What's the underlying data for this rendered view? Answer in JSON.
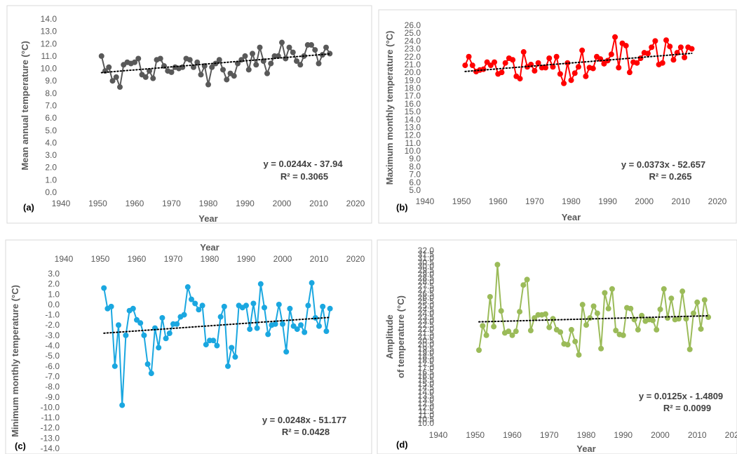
{
  "chart_data": [
    {
      "type": "line",
      "panel": "(a)",
      "xlabel": "Year",
      "ylabel": "Mean annual temperature (°C)",
      "xlim": [
        1940,
        2020
      ],
      "ylim": [
        0.0,
        14.0
      ],
      "xticks": [
        1940,
        1950,
        1960,
        1970,
        1980,
        1990,
        2000,
        2010,
        2020
      ],
      "ytick_step": 1.0,
      "ytick_decimals": 1,
      "x_axis_position": "bottom",
      "legend": "none",
      "equation": "y = 0.0244x - 37.94",
      "r2": "R² = 0.3065",
      "color": "#595959",
      "series": [
        {
          "x": [
            1951,
            1952,
            1953,
            1954,
            1955,
            1956,
            1957,
            1958,
            1959,
            1960,
            1961,
            1962,
            1963,
            1964,
            1965,
            1966,
            1967,
            1968,
            1969,
            1970,
            1971,
            1972,
            1973,
            1974,
            1975,
            1976,
            1977,
            1978,
            1979,
            1980,
            1981,
            1982,
            1983,
            1984,
            1985,
            1986,
            1987,
            1988,
            1989,
            1990,
            1991,
            1992,
            1993,
            1994,
            1995,
            1996,
            1997,
            1998,
            1999,
            2000,
            2001,
            2002,
            2003,
            2004,
            2005,
            2006,
            2007,
            2008,
            2009,
            2010,
            2011,
            2012,
            2013
          ],
          "values": [
            11.0,
            9.8,
            10.1,
            9.0,
            9.3,
            8.5,
            10.3,
            10.5,
            10.4,
            10.5,
            10.8,
            9.5,
            9.3,
            9.8,
            9.2,
            10.7,
            10.8,
            10.2,
            9.8,
            9.7,
            10.1,
            10.0,
            10.1,
            10.8,
            10.7,
            10.1,
            10.5,
            9.5,
            10.2,
            8.7,
            10.1,
            10.4,
            10.7,
            9.9,
            9.1,
            9.6,
            9.4,
            10.4,
            10.7,
            11.0,
            9.9,
            11.2,
            10.3,
            11.7,
            10.6,
            9.6,
            10.4,
            11.0,
            11.0,
            12.1,
            10.8,
            11.7,
            11.3,
            10.6,
            10.3,
            11.0,
            11.9,
            11.9,
            11.5,
            10.4,
            11.1,
            11.7,
            11.2
          ]
        }
      ],
      "trend": [
        1951,
        2013
      ]
    },
    {
      "type": "line",
      "panel": "(b)",
      "xlabel": "Year",
      "ylabel": "Maximum monthly temperature (°C)",
      "xlim": [
        1940,
        2020
      ],
      "ylim": [
        5.0,
        26.0
      ],
      "xticks": [
        1940,
        1950,
        1960,
        1970,
        1980,
        1990,
        2000,
        2010,
        2020
      ],
      "ytick_step": 1.0,
      "ytick_decimals": 1,
      "x_axis_position": "bottom",
      "legend": "none",
      "equation": "y = 0.0373x - 52.657",
      "r2": "R² = 0.265",
      "color": "#ff0000",
      "series": [
        {
          "x": [
            1951,
            1952,
            1953,
            1954,
            1955,
            1956,
            1957,
            1958,
            1959,
            1960,
            1961,
            1962,
            1963,
            1964,
            1965,
            1966,
            1967,
            1968,
            1969,
            1970,
            1971,
            1972,
            1973,
            1974,
            1975,
            1976,
            1977,
            1978,
            1979,
            1980,
            1981,
            1982,
            1983,
            1984,
            1985,
            1986,
            1987,
            1988,
            1989,
            1990,
            1991,
            1992,
            1993,
            1994,
            1995,
            1996,
            1997,
            1998,
            1999,
            2000,
            2001,
            2002,
            2003,
            2004,
            2005,
            2006,
            2007,
            2008,
            2009,
            2010,
            2011,
            2012,
            2013
          ],
          "values": [
            20.9,
            22.0,
            20.9,
            20.1,
            20.3,
            20.4,
            21.3,
            20.9,
            21.3,
            19.8,
            20.0,
            21.2,
            21.8,
            21.6,
            19.5,
            19.2,
            22.6,
            20.7,
            21.0,
            20.2,
            21.2,
            20.6,
            20.6,
            21.8,
            20.7,
            22.0,
            19.8,
            18.6,
            21.2,
            19.0,
            19.9,
            20.7,
            22.8,
            19.5,
            20.6,
            20.5,
            22.0,
            21.7,
            21.1,
            21.5,
            22.3,
            24.5,
            20.6,
            23.7,
            23.4,
            20.0,
            21.3,
            21.2,
            21.8,
            22.5,
            22.4,
            23.2,
            24.0,
            21.0,
            21.2,
            24.1,
            23.3,
            21.6,
            22.5,
            23.2,
            21.9,
            23.2,
            23.0
          ]
        }
      ],
      "trend": [
        1951,
        2013
      ]
    },
    {
      "type": "line",
      "panel": "(c)",
      "xlabel": "Year",
      "ylabel": "Minimum monthly temperature (°C)",
      "xlim": [
        1940,
        2020
      ],
      "ylim": [
        -14.0,
        3.0
      ],
      "xticks": [
        1940,
        1950,
        1960,
        1970,
        1980,
        1990,
        2000,
        2010,
        2020
      ],
      "ytick_step": 1.0,
      "ytick_decimals": 1,
      "x_axis_position": "top",
      "legend": "none",
      "equation": "y = 0.0248x - 51.177",
      "r2": "R² = 0.0428",
      "color": "#1aa7e0",
      "series": [
        {
          "x": [
            1951,
            1952,
            1953,
            1954,
            1955,
            1956,
            1957,
            1958,
            1959,
            1960,
            1961,
            1962,
            1963,
            1964,
            1965,
            1966,
            1967,
            1968,
            1969,
            1970,
            1971,
            1972,
            1973,
            1974,
            1975,
            1976,
            1977,
            1978,
            1979,
            1980,
            1981,
            1982,
            1983,
            1984,
            1985,
            1986,
            1987,
            1988,
            1989,
            1990,
            1991,
            1992,
            1993,
            1994,
            1995,
            1996,
            1997,
            1998,
            1999,
            2000,
            2001,
            2002,
            2003,
            2004,
            2005,
            2006,
            2007,
            2008,
            2009,
            2010,
            2011,
            2012,
            2013
          ],
          "values": [
            1.6,
            -0.4,
            -0.2,
            -6.0,
            -2.0,
            -9.8,
            -3.0,
            -0.6,
            -0.4,
            -1.5,
            -1.8,
            -3.0,
            -5.8,
            -6.7,
            -2.3,
            -4.2,
            -1.3,
            -3.3,
            -2.8,
            -1.9,
            -1.9,
            -1.2,
            -1.0,
            1.7,
            0.5,
            0.1,
            -0.5,
            -0.1,
            -3.9,
            -3.5,
            -3.5,
            -4.0,
            -1.2,
            -0.2,
            -6.0,
            -4.2,
            -5.1,
            -0.1,
            -0.3,
            -0.1,
            -2.4,
            0.1,
            -2.3,
            2.0,
            -0.3,
            -2.9,
            -2.0,
            -1.9,
            0.0,
            -1.9,
            -4.6,
            -0.4,
            -2.1,
            -2.4,
            -2.0,
            -2.7,
            -0.1,
            2.1,
            -1.3,
            -2.1,
            -0.2,
            -2.6,
            -0.4
          ]
        }
      ],
      "trend": [
        1951,
        2013
      ]
    },
    {
      "type": "line",
      "panel": "(d)",
      "xlabel": "Year",
      "ylabel_lines": [
        "Amplitude",
        "of temperature (°C)"
      ],
      "xlim": [
        1940,
        2020
      ],
      "ylim": [
        10.0,
        32.0
      ],
      "xticks": [
        1940,
        1950,
        1960,
        1970,
        1980,
        1990,
        2000,
        2010,
        2020
      ],
      "ytick_step": 0.5,
      "ytick_decimals": 1,
      "x_axis_position": "bottom",
      "legend": "none",
      "equation": "y = 0.0125x - 1.4809",
      "r2": "R² = 0.0099",
      "color": "#9bbb59",
      "series": [
        {
          "x": [
            1951,
            1952,
            1953,
            1954,
            1955,
            1956,
            1957,
            1958,
            1959,
            1960,
            1961,
            1962,
            1963,
            1964,
            1965,
            1966,
            1967,
            1968,
            1969,
            1970,
            1971,
            1972,
            1973,
            1974,
            1975,
            1976,
            1977,
            1978,
            1979,
            1980,
            1981,
            1982,
            1983,
            1984,
            1985,
            1986,
            1987,
            1988,
            1989,
            1990,
            1991,
            1992,
            1993,
            1994,
            1995,
            1996,
            1997,
            1998,
            1999,
            2000,
            2001,
            2002,
            2003,
            2004,
            2005,
            2006,
            2007,
            2008,
            2009,
            2010,
            2011,
            2012,
            2013
          ],
          "values": [
            19.3,
            22.4,
            21.2,
            26.1,
            22.3,
            30.2,
            24.3,
            21.5,
            21.7,
            21.2,
            21.7,
            24.2,
            27.6,
            28.3,
            21.8,
            23.4,
            23.8,
            23.8,
            23.9,
            22.2,
            23.3,
            21.9,
            21.6,
            20.1,
            20.0,
            21.9,
            20.4,
            18.7,
            25.1,
            22.5,
            23.4,
            24.9,
            24.0,
            19.5,
            26.6,
            24.6,
            27.1,
            21.8,
            21.3,
            21.2,
            24.7,
            24.6,
            23.2,
            21.9,
            23.7,
            23.0,
            23.2,
            23.1,
            21.9,
            24.5,
            27.1,
            23.4,
            25.9,
            23.2,
            23.3,
            26.8,
            23.3,
            19.4,
            24.0,
            25.4,
            22.0,
            25.7,
            23.5
          ]
        }
      ],
      "trend": [
        1951,
        2013
      ]
    }
  ]
}
